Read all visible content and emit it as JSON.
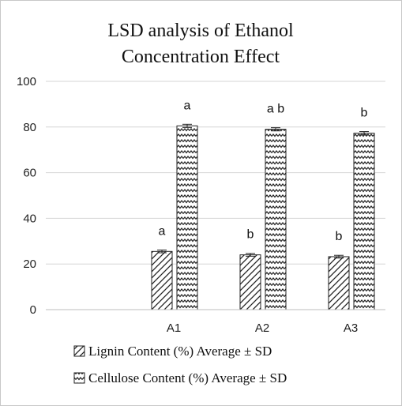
{
  "chart_data": {
    "type": "bar",
    "title_lines": [
      "LSD analysis of Ethanol",
      "Concentration Effect"
    ],
    "categories": [
      "A1",
      "A2",
      "A3"
    ],
    "series": [
      {
        "name": "Lignin Content (%) Average ± SD",
        "values": [
          25.5,
          24.0,
          23.2
        ],
        "errors": [
          0.6,
          0.6,
          0.6
        ],
        "letters": [
          "a",
          "b",
          "b"
        ],
        "pattern": "diagonal"
      },
      {
        "name": "Cellulose Content (%) Average ± SD",
        "values": [
          80.5,
          79.0,
          77.3
        ],
        "errors": [
          0.7,
          0.7,
          0.7
        ],
        "letters": [
          "a",
          "a b",
          "b"
        ],
        "pattern": "zigzag"
      }
    ],
    "yticks": [
      0,
      20,
      40,
      60,
      80,
      100
    ],
    "ylim": [
      0,
      100
    ],
    "grid": true,
    "legend": "bottom"
  }
}
